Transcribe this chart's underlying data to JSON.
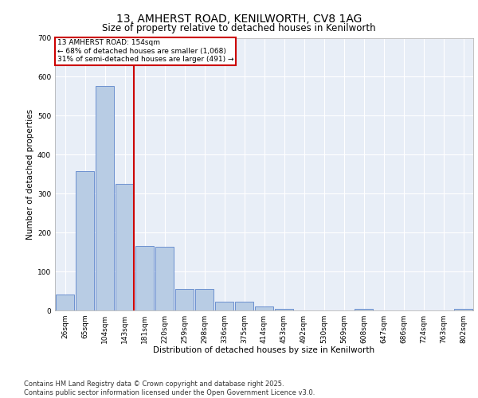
{
  "title": "13, AMHERST ROAD, KENILWORTH, CV8 1AG",
  "subtitle": "Size of property relative to detached houses in Kenilworth",
  "xlabel": "Distribution of detached houses by size in Kenilworth",
  "ylabel": "Number of detached properties",
  "categories": [
    "26sqm",
    "65sqm",
    "104sqm",
    "143sqm",
    "181sqm",
    "220sqm",
    "259sqm",
    "298sqm",
    "336sqm",
    "375sqm",
    "414sqm",
    "453sqm",
    "492sqm",
    "530sqm",
    "569sqm",
    "608sqm",
    "647sqm",
    "686sqm",
    "724sqm",
    "763sqm",
    "802sqm"
  ],
  "values": [
    40,
    357,
    577,
    325,
    165,
    163,
    55,
    55,
    22,
    22,
    10,
    5,
    0,
    0,
    0,
    5,
    0,
    0,
    0,
    0,
    5
  ],
  "bar_color": "#b8cce4",
  "bar_edge_color": "#4472c4",
  "redline_x": 3.45,
  "annotation_text": "13 AMHERST ROAD: 154sqm\n← 68% of detached houses are smaller (1,068)\n31% of semi-detached houses are larger (491) →",
  "annotation_box_color": "#ffffff",
  "annotation_box_edge_color": "#cc0000",
  "redline_color": "#cc0000",
  "ylim": [
    0,
    700
  ],
  "yticks": [
    0,
    100,
    200,
    300,
    400,
    500,
    600,
    700
  ],
  "background_color": "#e8eef7",
  "grid_color": "#ffffff",
  "footer_text": "Contains HM Land Registry data © Crown copyright and database right 2025.\nContains public sector information licensed under the Open Government Licence v3.0.",
  "title_fontsize": 10,
  "subtitle_fontsize": 8.5,
  "axis_label_fontsize": 7.5,
  "tick_fontsize": 6.5,
  "annotation_fontsize": 6.5,
  "footer_fontsize": 6.0
}
